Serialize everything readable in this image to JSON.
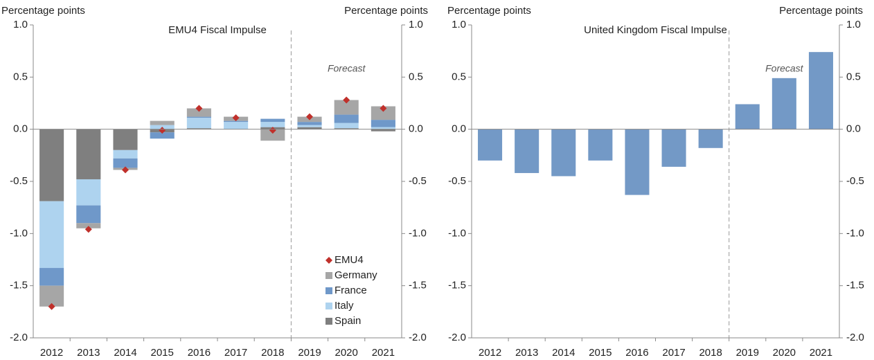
{
  "chart_data": [
    {
      "type": "bar",
      "stacked": true,
      "title": "EMU4 Fiscal Impulse",
      "ylabel": "Percentage points",
      "y2label": "Percentage points",
      "annotation": "Forecast",
      "categories": [
        "2012",
        "2013",
        "2014",
        "2015",
        "2016",
        "2017",
        "2018",
        "2019",
        "2020",
        "2021"
      ],
      "series": [
        {
          "name": "Spain",
          "color": "#7f7f7f",
          "values": [
            -0.69,
            -0.48,
            -0.2,
            -0.03,
            0.01,
            0.0,
            0.02,
            0.02,
            0.01,
            -0.02
          ]
        },
        {
          "name": "Italy",
          "color": "#aed3ef",
          "values": [
            -0.64,
            -0.25,
            -0.08,
            0.04,
            0.1,
            0.07,
            0.05,
            0.02,
            0.05,
            0.02
          ]
        },
        {
          "name": "France",
          "color": "#6f98c9",
          "values": [
            -0.17,
            -0.17,
            -0.09,
            -0.06,
            0.01,
            0.01,
            0.03,
            0.03,
            0.08,
            0.07
          ]
        },
        {
          "name": "Germany",
          "color": "#a6a6a6",
          "values": [
            -0.2,
            -0.05,
            -0.02,
            0.04,
            0.08,
            0.04,
            -0.11,
            0.05,
            0.14,
            0.13
          ]
        },
        {
          "name": "EMU4",
          "color": "#c0302b",
          "marker": "diamond",
          "values": [
            -1.7,
            -0.96,
            -0.39,
            -0.01,
            0.2,
            0.11,
            -0.01,
            0.12,
            0.28,
            0.2
          ]
        }
      ],
      "legend": "lower right",
      "ylim": [
        -2,
        1
      ],
      "yticks": [
        {
          "value": 1,
          "label": "1.0"
        },
        {
          "value": 0.5,
          "label": "0.5"
        },
        {
          "value": 0,
          "label": "0.0"
        },
        {
          "value": -0.5,
          "label": "-0.5"
        },
        {
          "value": -1,
          "label": "-1.0"
        },
        {
          "value": -1.5,
          "label": "-1.5"
        },
        {
          "value": -2,
          "label": "-2.0"
        }
      ],
      "y2lim": [
        -2,
        1
      ],
      "y2ticks": [
        {
          "value": 1,
          "label": "1.0"
        },
        {
          "value": 0.5,
          "label": "0.5"
        },
        {
          "value": 0,
          "label": "0.0"
        },
        {
          "value": -0.5,
          "label": "-0.5"
        },
        {
          "value": -1,
          "label": "-1.0"
        },
        {
          "value": -1.5,
          "label": "-1.5"
        },
        {
          "value": -2,
          "label": "-2.0"
        }
      ]
    },
    {
      "type": "bar",
      "title": "United Kingdom Fiscal Impulse",
      "ylabel": "Percentage points",
      "y2label": "Percentage points",
      "annotation": "Forecast",
      "categories": [
        "2012",
        "2013",
        "2014",
        "2015",
        "2016",
        "2017",
        "2018",
        "2019",
        "2020",
        "2021"
      ],
      "values": [
        -0.3,
        -0.42,
        -0.45,
        -0.3,
        -0.63,
        -0.36,
        -0.18,
        0.24,
        0.49,
        0.74
      ],
      "color": "#7399c6",
      "ylim": [
        -2,
        1
      ],
      "yticks": [
        {
          "value": 1,
          "label": "1.0"
        },
        {
          "value": 0.5,
          "label": "0.5"
        },
        {
          "value": 0,
          "label": "0.0"
        },
        {
          "value": -0.5,
          "label": "-0.5"
        },
        {
          "value": -1,
          "label": "-1.0"
        },
        {
          "value": -1.5,
          "label": "-1.5"
        },
        {
          "value": -2,
          "label": "-2.0"
        }
      ],
      "y2lim": [
        -2,
        1
      ],
      "y2ticks": [
        {
          "value": 1,
          "label": "1.0"
        },
        {
          "value": 0.5,
          "label": "0.5"
        },
        {
          "value": 0,
          "label": "0.0"
        },
        {
          "value": -0.5,
          "label": "-0.5"
        },
        {
          "value": -1,
          "label": "-1.0"
        },
        {
          "value": -1.5,
          "label": "-1.5"
        },
        {
          "value": -2,
          "label": "-2.0"
        }
      ]
    }
  ]
}
